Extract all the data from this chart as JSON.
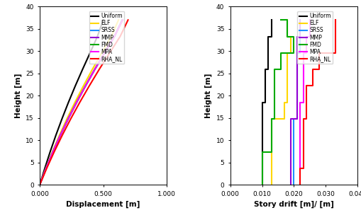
{
  "left_plot": {
    "xlabel": "Displacement [m]",
    "ylabel": "Height [m]",
    "xlim": [
      0.0,
      1.0
    ],
    "ylim": [
      0,
      40
    ],
    "xticks": [
      0.0,
      0.5,
      1.0
    ],
    "xtick_labels": [
      "0.000",
      "0.500",
      "1.000"
    ],
    "yticks": [
      0,
      5,
      10,
      15,
      20,
      25,
      30,
      35,
      40
    ],
    "series": {
      "Uniform": {
        "color": "#000000",
        "heights": [
          0,
          3.7,
          7.4,
          11.1,
          14.8,
          18.5,
          22.2,
          25.9,
          29.6,
          33.3,
          37.0
        ],
        "displacements": [
          0.0,
          0.04,
          0.082,
          0.127,
          0.175,
          0.226,
          0.28,
          0.337,
          0.396,
          0.454,
          0.5
        ]
      },
      "ELF": {
        "color": "#FFD700",
        "heights": [
          0,
          3.7,
          7.4,
          11.1,
          14.8,
          18.5,
          22.2,
          25.9,
          29.6,
          33.3,
          37.0
        ],
        "displacements": [
          0.0,
          0.048,
          0.1,
          0.155,
          0.214,
          0.277,
          0.344,
          0.414,
          0.488,
          0.563,
          0.62
        ]
      },
      "SRSS": {
        "color": "#1E90FF",
        "heights": [
          0,
          3.7,
          7.4,
          11.1,
          14.8,
          18.5,
          22.2,
          25.9,
          29.6,
          33.3,
          37.0
        ],
        "displacements": [
          0.0,
          0.05,
          0.104,
          0.162,
          0.224,
          0.29,
          0.36,
          0.433,
          0.51,
          0.588,
          0.648
        ]
      },
      "MMP": {
        "color": "#9400D3",
        "heights": [
          0,
          3.7,
          7.4,
          11.1,
          14.8,
          18.5,
          22.2,
          25.9,
          29.6,
          33.3,
          37.0
        ],
        "displacements": [
          0.0,
          0.05,
          0.104,
          0.162,
          0.224,
          0.29,
          0.36,
          0.433,
          0.51,
          0.588,
          0.65
        ]
      },
      "FMD": {
        "color": "#00AA00",
        "heights": [
          0,
          3.7,
          7.4,
          11.1,
          14.8,
          18.5,
          22.2,
          25.9,
          29.6,
          33.3,
          37.0
        ],
        "displacements": [
          0.0,
          0.05,
          0.104,
          0.162,
          0.224,
          0.29,
          0.36,
          0.433,
          0.51,
          0.588,
          0.652
        ]
      },
      "MPA": {
        "color": "#FF00FF",
        "heights": [
          0,
          3.7,
          7.4,
          11.1,
          14.8,
          18.5,
          22.2,
          25.9,
          29.6,
          33.3,
          37.0
        ],
        "displacements": [
          0.0,
          0.05,
          0.104,
          0.162,
          0.224,
          0.29,
          0.36,
          0.433,
          0.51,
          0.588,
          0.652
        ]
      },
      "RHA_NL": {
        "color": "#FF0000",
        "heights": [
          0,
          3.7,
          7.4,
          11.1,
          14.8,
          18.5,
          22.2,
          25.9,
          29.6,
          33.3,
          37.0
        ],
        "displacements": [
          0.0,
          0.055,
          0.114,
          0.177,
          0.244,
          0.315,
          0.39,
          0.468,
          0.55,
          0.633,
          0.695
        ]
      }
    }
  },
  "right_plot": {
    "xlabel": "Story drift [m]/ [m]",
    "ylabel": "Height [m]",
    "xlim": [
      0.0,
      0.04
    ],
    "ylim": [
      0,
      40
    ],
    "xticks": [
      0.0,
      0.01,
      0.02,
      0.03,
      0.04
    ],
    "xtick_labels": [
      "0.000",
      "0.010",
      "0.020",
      "0.030",
      "0.040"
    ],
    "yticks": [
      0,
      5,
      10,
      15,
      20,
      25,
      30,
      35,
      40
    ],
    "series": {
      "Uniform": {
        "color": "#000000",
        "x": [
          0.01,
          0.01,
          0.01,
          0.01,
          0.01,
          0.011,
          0.011,
          0.012,
          0.012,
          0.013,
          0.013
        ],
        "y": [
          0,
          3.7,
          7.4,
          11.1,
          14.8,
          18.5,
          22.2,
          25.9,
          29.6,
          33.3,
          37.0
        ]
      },
      "ELF": {
        "color": "#FFD700",
        "x": [
          0.013,
          0.013,
          0.013,
          0.013,
          0.017,
          0.018,
          0.018,
          0.018,
          0.019,
          0.018,
          0.018
        ],
        "y": [
          0,
          3.7,
          7.4,
          11.1,
          14.8,
          18.5,
          22.2,
          25.9,
          29.6,
          33.3,
          37.0
        ]
      },
      "SRSS": {
        "color": "#1E90FF",
        "x": [
          0.02,
          0.02,
          0.02,
          0.02,
          0.021,
          0.021,
          0.021,
          0.021,
          0.022,
          0.022,
          0.022
        ],
        "y": [
          0,
          3.7,
          7.4,
          11.1,
          14.8,
          18.5,
          22.2,
          25.9,
          29.6,
          33.3,
          37.0
        ]
      },
      "MMP": {
        "color": "#9400D3",
        "x": [
          0.019,
          0.019,
          0.019,
          0.019,
          0.021,
          0.021,
          0.021,
          0.021,
          0.021,
          0.022,
          0.022
        ],
        "y": [
          0,
          3.7,
          7.4,
          11.1,
          14.8,
          18.5,
          22.2,
          25.9,
          29.6,
          33.3,
          37.0
        ]
      },
      "FMD": {
        "color": "#00AA00",
        "x": [
          0.01,
          0.01,
          0.013,
          0.013,
          0.014,
          0.014,
          0.014,
          0.016,
          0.02,
          0.018,
          0.016
        ],
        "y": [
          0,
          3.7,
          7.4,
          11.1,
          14.8,
          18.5,
          22.2,
          25.9,
          29.6,
          33.3,
          37.0
        ]
      },
      "MPA": {
        "color": "#FF00FF",
        "x": [
          0.022,
          0.022,
          0.022,
          0.022,
          0.022,
          0.023,
          0.023,
          0.023,
          0.024,
          0.025,
          0.025
        ],
        "y": [
          0,
          3.7,
          7.4,
          11.1,
          14.8,
          18.5,
          22.2,
          25.9,
          29.6,
          33.3,
          37.0
        ]
      },
      "RHA_NL": {
        "color": "#FF0000",
        "x": [
          0.022,
          0.023,
          0.023,
          0.023,
          0.024,
          0.024,
          0.026,
          0.028,
          0.033,
          0.033,
          0.033
        ],
        "y": [
          0,
          3.7,
          7.4,
          11.1,
          14.8,
          18.5,
          22.2,
          25.9,
          29.6,
          33.3,
          37.0
        ]
      }
    }
  },
  "legend_order": [
    "Uniform",
    "ELF",
    "SRSS",
    "MMP",
    "FMD",
    "MPA",
    "RHA_NL"
  ],
  "linewidth": 1.5
}
